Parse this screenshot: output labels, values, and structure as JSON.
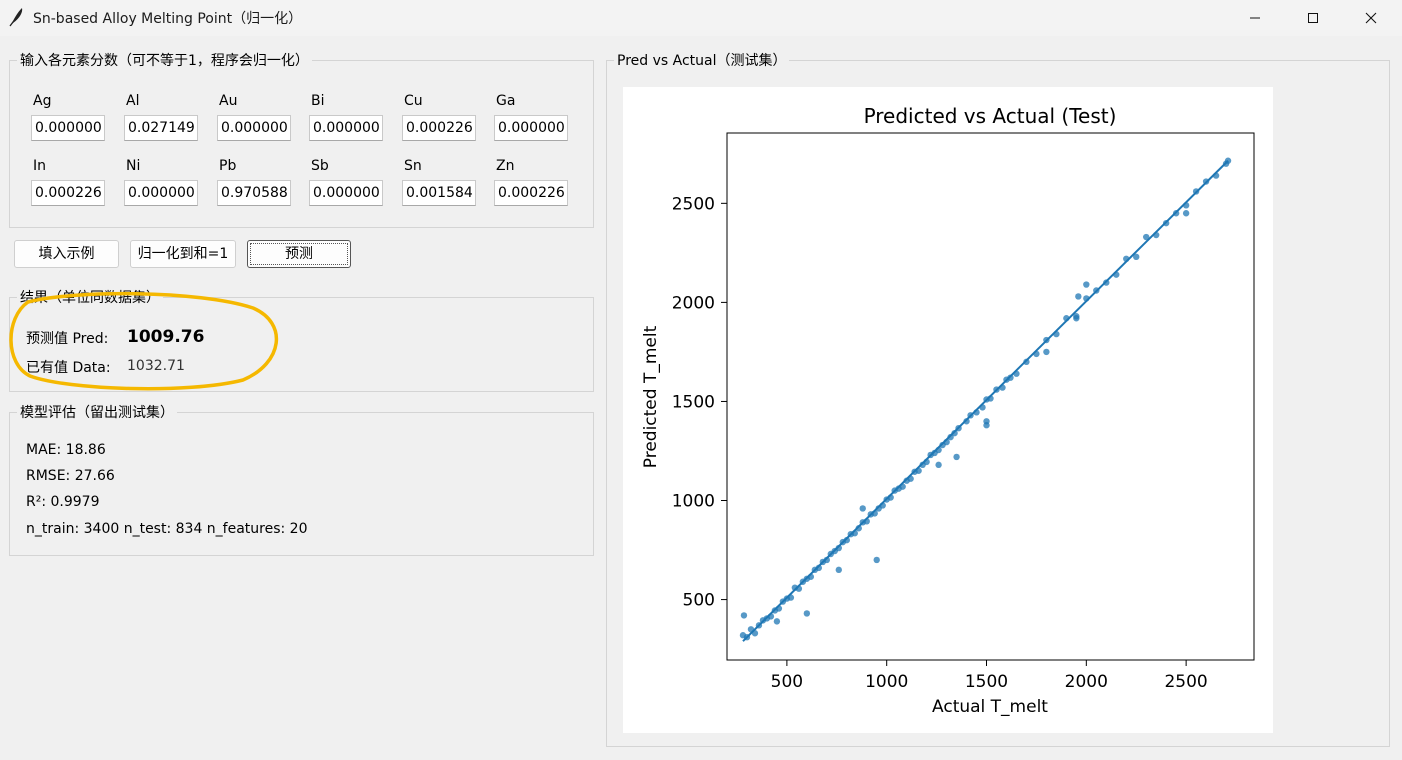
{
  "window": {
    "title": "Sn-based Alloy Melting Point（归一化）",
    "icon": "feather-icon",
    "controls": [
      "minimize-icon",
      "maximize-icon",
      "close-icon"
    ]
  },
  "inputs": {
    "legend": "输入各元素分数（可不等于1，程序会归一化）",
    "elements": [
      {
        "label": "Ag",
        "value": "0.000000"
      },
      {
        "label": "Al",
        "value": "0.027149"
      },
      {
        "label": "Au",
        "value": "0.000000"
      },
      {
        "label": "Bi",
        "value": "0.000000"
      },
      {
        "label": "Cu",
        "value": "0.000226"
      },
      {
        "label": "Ga",
        "value": "0.000000"
      },
      {
        "label": "In",
        "value": "0.000226"
      },
      {
        "label": "Ni",
        "value": "0.000000"
      },
      {
        "label": "Pb",
        "value": "0.970588"
      },
      {
        "label": "Sb",
        "value": "0.000000"
      },
      {
        "label": "Sn",
        "value": "0.001584"
      },
      {
        "label": "Zn",
        "value": "0.000226"
      }
    ]
  },
  "buttons": {
    "fill_example": "填入示例",
    "normalize": "归一化到和=1",
    "predict": "预测"
  },
  "result": {
    "legend": "结果（单位同数据集）",
    "pred_label": "预测值 Pred:",
    "pred_value": "1009.76",
    "data_label": "已有值 Data:",
    "data_value": "1032.71"
  },
  "evaluation": {
    "legend": "模型评估（留出测试集）",
    "mae": "MAE:  18.86",
    "rmse": "RMSE: 27.66",
    "r2": "R²:   0.9979",
    "counts": "n_train: 3400   n_test: 834   n_features: 20"
  },
  "plot_panel": {
    "legend": "Pred vs Actual（测试集）"
  },
  "annotation": {
    "color": "#f5b800"
  },
  "chart_data": {
    "type": "scatter",
    "title": "Predicted vs Actual (Test)",
    "xlabel": "Actual T_melt",
    "ylabel": "Predicted T_melt",
    "xlim": [
      200,
      2840
    ],
    "ylim": [
      195,
      2855
    ],
    "xticks": [
      500,
      1000,
      1500,
      2000,
      2500
    ],
    "yticks": [
      500,
      1000,
      1500,
      2000,
      2500
    ],
    "grid": false,
    "point_color": "#1f77b4",
    "reference_line": {
      "x": [
        280,
        2710
      ],
      "y": [
        290,
        2715
      ]
    },
    "series": [
      {
        "points_x": [
          280,
          300,
          320,
          340,
          360,
          380,
          400,
          420,
          440,
          460,
          480,
          500,
          520,
          540,
          560,
          580,
          600,
          620,
          640,
          660,
          680,
          700,
          720,
          740,
          760,
          780,
          800,
          820,
          840,
          860,
          880,
          900,
          920,
          940,
          960,
          980,
          1000,
          1020,
          1040,
          1060,
          1080,
          1100,
          1120,
          1140,
          1160,
          1180,
          1200,
          1220,
          1240,
          1260,
          1280,
          1300,
          1320,
          1340,
          1360,
          1400,
          1420,
          1450,
          1480,
          1500,
          1520,
          1550,
          1580,
          1600,
          1620,
          1650,
          1700,
          1750,
          1800,
          1850,
          1900,
          1950,
          2000,
          2050,
          2100,
          2150,
          2200,
          2250,
          2300,
          2350,
          2400,
          2450,
          2500,
          2550,
          2600,
          2650,
          2700,
          2710,
          285,
          450,
          600,
          760,
          880,
          950,
          1260,
          1350,
          1500,
          1500,
          1800,
          1950,
          1960,
          2000,
          2500
        ],
        "points_y": [
          320,
          310,
          350,
          330,
          370,
          395,
          405,
          415,
          445,
          455,
          490,
          505,
          510,
          560,
          555,
          590,
          605,
          615,
          650,
          660,
          690,
          700,
          730,
          745,
          760,
          790,
          800,
          830,
          835,
          860,
          890,
          895,
          930,
          935,
          960,
          975,
          1005,
          1015,
          1050,
          1060,
          1070,
          1100,
          1110,
          1145,
          1150,
          1180,
          1195,
          1230,
          1240,
          1255,
          1280,
          1295,
          1320,
          1340,
          1365,
          1400,
          1430,
          1445,
          1470,
          1510,
          1515,
          1560,
          1570,
          1610,
          1620,
          1640,
          1700,
          1740,
          1810,
          1840,
          1920,
          1930,
          2020,
          2060,
          2100,
          2140,
          2220,
          2230,
          2330,
          2340,
          2400,
          2450,
          2490,
          2560,
          2610,
          2640,
          2700,
          2715,
          420,
          390,
          430,
          650,
          960,
          700,
          1180,
          1220,
          1400,
          1380,
          1750,
          1920,
          2030,
          2090,
          2450
        ]
      }
    ]
  }
}
